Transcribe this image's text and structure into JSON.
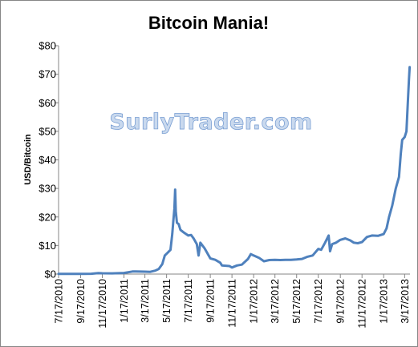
{
  "chart_data": {
    "type": "line",
    "title": "Bitcoin Mania!",
    "xlabel": "",
    "ylabel": "USD/Bitcoin",
    "watermark": "SurlyTrader.com",
    "ylim": [
      0,
      80
    ],
    "yticks": [
      0,
      10,
      20,
      30,
      40,
      50,
      60,
      70,
      80
    ],
    "ytick_labels": [
      "$0",
      "$10",
      "$20",
      "$30",
      "$40",
      "$50",
      "$60",
      "$70",
      "$80"
    ],
    "xlim": [
      "2010-07-17",
      "2013-04-01"
    ],
    "xticks": [
      "2010-07-17",
      "2010-09-17",
      "2010-11-17",
      "2011-01-17",
      "2011-03-17",
      "2011-05-17",
      "2011-07-17",
      "2011-09-17",
      "2011-11-17",
      "2012-01-17",
      "2012-03-17",
      "2012-05-17",
      "2012-07-17",
      "2012-09-17",
      "2012-11-17",
      "2013-01-17",
      "2013-03-17"
    ],
    "xtick_labels": [
      "7/17/2010",
      "9/17/2010",
      "11/17/2010",
      "1/17/2011",
      "3/17/2011",
      "5/17/2011",
      "7/17/2011",
      "9/17/2011",
      "11/17/2011",
      "1/17/2012",
      "3/17/2012",
      "5/17/2012",
      "7/17/2012",
      "9/17/2012",
      "11/17/2012",
      "1/17/2013",
      "3/17/2013"
    ],
    "grid": false,
    "legend": "none",
    "series": [
      {
        "color": "#4f81bd",
        "x": [
          "2010-07-17",
          "2010-08-15",
          "2010-09-17",
          "2010-10-17",
          "2010-11-06",
          "2010-11-17",
          "2010-12-15",
          "2011-01-17",
          "2011-02-10",
          "2011-02-20",
          "2011-03-17",
          "2011-04-01",
          "2011-04-15",
          "2011-04-25",
          "2011-05-05",
          "2011-05-12",
          "2011-05-20",
          "2011-05-28",
          "2011-06-02",
          "2011-06-05",
          "2011-06-08",
          "2011-06-10",
          "2011-06-12",
          "2011-06-15",
          "2011-06-20",
          "2011-06-25",
          "2011-07-05",
          "2011-07-17",
          "2011-07-25",
          "2011-08-01",
          "2011-08-10",
          "2011-08-15",
          "2011-08-20",
          "2011-09-01",
          "2011-09-17",
          "2011-10-01",
          "2011-10-15",
          "2011-10-20",
          "2011-11-10",
          "2011-11-17",
          "2011-12-01",
          "2011-12-15",
          "2012-01-01",
          "2012-01-09",
          "2012-01-17",
          "2012-02-01",
          "2012-02-15",
          "2012-03-01",
          "2012-03-17",
          "2012-04-01",
          "2012-04-15",
          "2012-05-01",
          "2012-05-17",
          "2012-06-01",
          "2012-06-15",
          "2012-07-01",
          "2012-07-17",
          "2012-07-25",
          "2012-08-05",
          "2012-08-15",
          "2012-08-19",
          "2012-08-25",
          "2012-09-05",
          "2012-09-17",
          "2012-10-01",
          "2012-10-15",
          "2012-10-25",
          "2012-11-05",
          "2012-11-17",
          "2012-12-01",
          "2012-12-15",
          "2013-01-01",
          "2013-01-17",
          "2013-01-25",
          "2013-02-01",
          "2013-02-10",
          "2013-02-20",
          "2013-03-01",
          "2013-03-06",
          "2013-03-10",
          "2013-03-17",
          "2013-03-22",
          "2013-03-26",
          "2013-03-29",
          "2013-03-31"
        ],
        "y": [
          0.07,
          0.07,
          0.06,
          0.1,
          0.35,
          0.28,
          0.24,
          0.4,
          0.9,
          0.9,
          0.85,
          0.78,
          1.2,
          1.8,
          3.5,
          6.5,
          7.5,
          8.5,
          14,
          18.5,
          23,
          29.6,
          22,
          18,
          17.5,
          15.5,
          14.5,
          13.5,
          13.7,
          12.5,
          10.5,
          6.5,
          11,
          9,
          5.5,
          5.0,
          4.0,
          3.0,
          2.8,
          2.3,
          3.0,
          3.3,
          5.3,
          7.0,
          6.5,
          5.7,
          4.5,
          4.9,
          5.0,
          4.9,
          5.0,
          5.0,
          5.1,
          5.3,
          6.0,
          6.5,
          8.8,
          8.5,
          11,
          13.5,
          8,
          10.5,
          11,
          12,
          12.5,
          11.8,
          11.0,
          10.8,
          11.2,
          13.0,
          13.5,
          13.4,
          14.0,
          16.0,
          20.0,
          24.0,
          30.0,
          34.0,
          42.0,
          47.0,
          48.0,
          50.0,
          60.0,
          68.0,
          72.5
        ]
      }
    ]
  }
}
